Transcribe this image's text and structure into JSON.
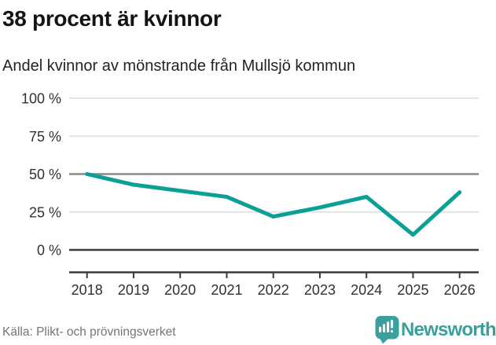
{
  "chart_data": {
    "type": "line",
    "title": "38 procent är kvinnor",
    "subtitle": "Andel kvinnor av mönstrande från Mullsjö kommun",
    "source": "Källa: Plikt- och prövningsverket",
    "x": [
      "2018",
      "2019",
      "2020",
      "2021",
      "2022",
      "2023",
      "2024",
      "2025",
      "2026"
    ],
    "values": [
      50,
      43,
      39,
      35,
      22,
      28,
      35,
      10,
      38
    ],
    "series_name": "Andel kvinnor av mönstrande",
    "xlabel": "",
    "ylabel": "",
    "ylim": [
      0,
      100
    ],
    "grid": true,
    "legend": false,
    "yticks": [
      {
        "value": 100,
        "label": "100 %",
        "line_color": "#e3e3e3",
        "line_width": 2
      },
      {
        "value": 75,
        "label": "75 %",
        "line_color": "#e3e3e3",
        "line_width": 2
      },
      {
        "value": 50,
        "label": "50 %",
        "line_color": "#8a8a8a",
        "line_width": 2.5
      },
      {
        "value": 25,
        "label": "25 %",
        "line_color": "#e3e3e3",
        "line_width": 2
      },
      {
        "value": 0,
        "label": "0 %",
        "line_color": "#3b3b3b",
        "line_width": 2.5
      }
    ],
    "line_color": "#0aa096",
    "axis_color": "#3b3b3b",
    "tick_label_color": "#303030"
  },
  "footer": {
    "brand": {
      "name": "Newsworthy",
      "color": "#3a9f9d",
      "icon": "newsworthy-bubble-bar-chart-icon"
    }
  }
}
